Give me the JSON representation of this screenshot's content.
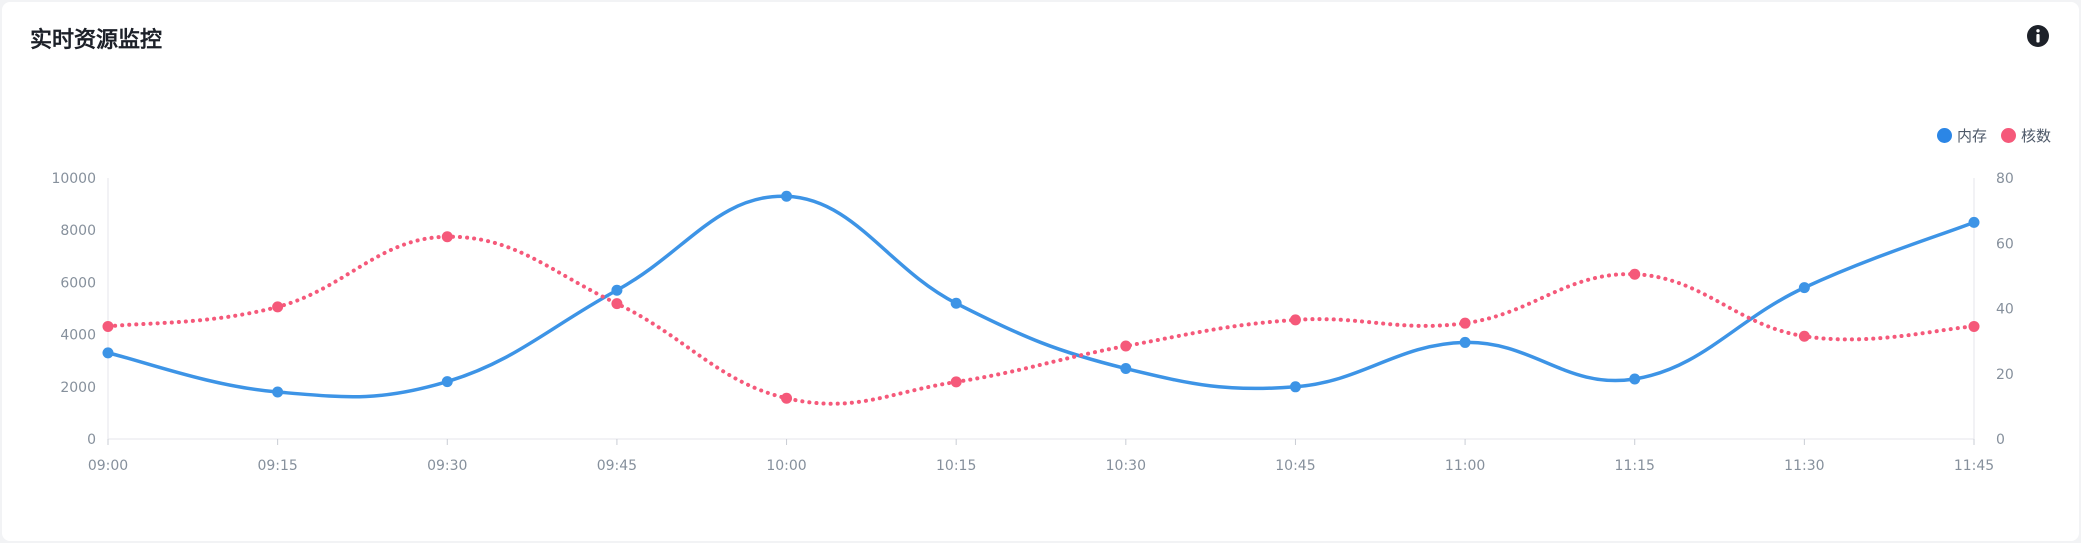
{
  "card": {
    "title": "实时资源监控",
    "info_icon": "info-circle-icon"
  },
  "legend": [
    {
      "label": "内存",
      "color": "#2b86e6"
    },
    {
      "label": "核数",
      "color": "#f5597a"
    }
  ],
  "chart_data": {
    "type": "line",
    "title": "",
    "xlabel": "",
    "categories": [
      "09:00",
      "09:15",
      "09:30",
      "09:45",
      "10:00",
      "10:15",
      "10:30",
      "10:45",
      "11:00",
      "11:15",
      "11:30",
      "11:45"
    ],
    "series": [
      {
        "name": "内存",
        "axis": "left",
        "color": "#3d94e6",
        "style": "solid",
        "values": [
          3300,
          1800,
          2200,
          5700,
          9300,
          5200,
          2700,
          2000,
          3700,
          2300,
          5800,
          8300
        ]
      },
      {
        "name": "核数",
        "axis": "right",
        "color": "#f5597a",
        "style": "dotted",
        "values": [
          34.5,
          40.5,
          62,
          41.5,
          12.5,
          17.5,
          28.5,
          36.5,
          35.5,
          50.5,
          31.5,
          34.5
        ]
      }
    ],
    "y_left": {
      "min": 0,
      "max": 10000,
      "ticks": [
        "0",
        "2000",
        "4000",
        "6000",
        "8000",
        "10000"
      ]
    },
    "y_right": {
      "min": 0,
      "max": 80,
      "ticks": [
        "0",
        "20",
        "40",
        "60",
        "80"
      ]
    },
    "grid": false,
    "legend_position": "top-right"
  }
}
